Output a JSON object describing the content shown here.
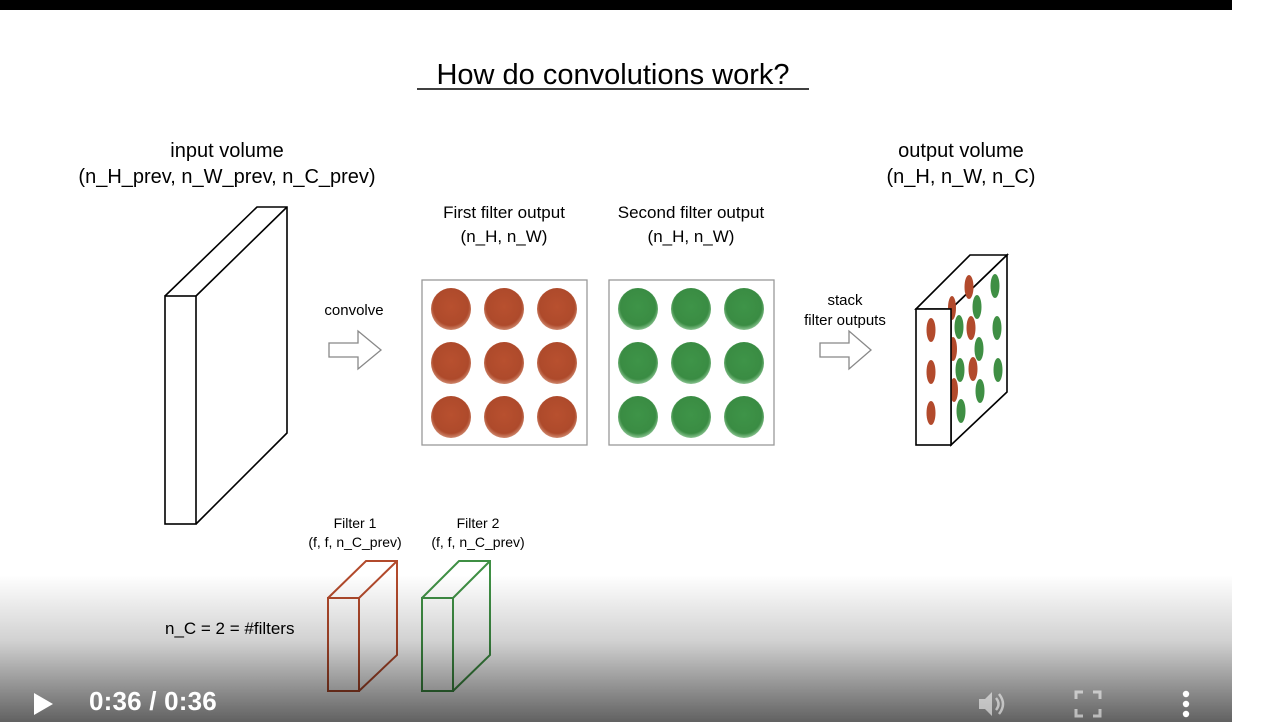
{
  "slide": {
    "title": "How do convolutions work?",
    "input_volume": {
      "label": "input volume",
      "shape": "(n_H_prev, n_W_prev, n_C_prev)"
    },
    "convolve_label": "convolve",
    "first_output": {
      "label": "First filter output",
      "shape": "(n_H, n_W)"
    },
    "second_output": {
      "label": "Second filter output",
      "shape": "(n_H, n_W)"
    },
    "stack_label_line1": "stack",
    "stack_label_line2": "filter outputs",
    "output_volume": {
      "label": "output volume",
      "shape": "(n_H, n_W, n_C)"
    },
    "filter1": {
      "label": "Filter 1",
      "shape": "(f, f, n_C_prev)"
    },
    "filter2": {
      "label": "Filter 2",
      "shape": "(f, f, n_C_prev)"
    },
    "nc_label": "n_C = 2 = #filters",
    "colors": {
      "filter1": "#b24a2c",
      "filter2": "#3f8f44"
    }
  },
  "player": {
    "time_display": "0:36 / 0:36",
    "icons": {
      "play": "play-icon",
      "volume": "volume-icon",
      "fullscreen": "fullscreen-icon",
      "more": "more-vertical-icon"
    }
  }
}
